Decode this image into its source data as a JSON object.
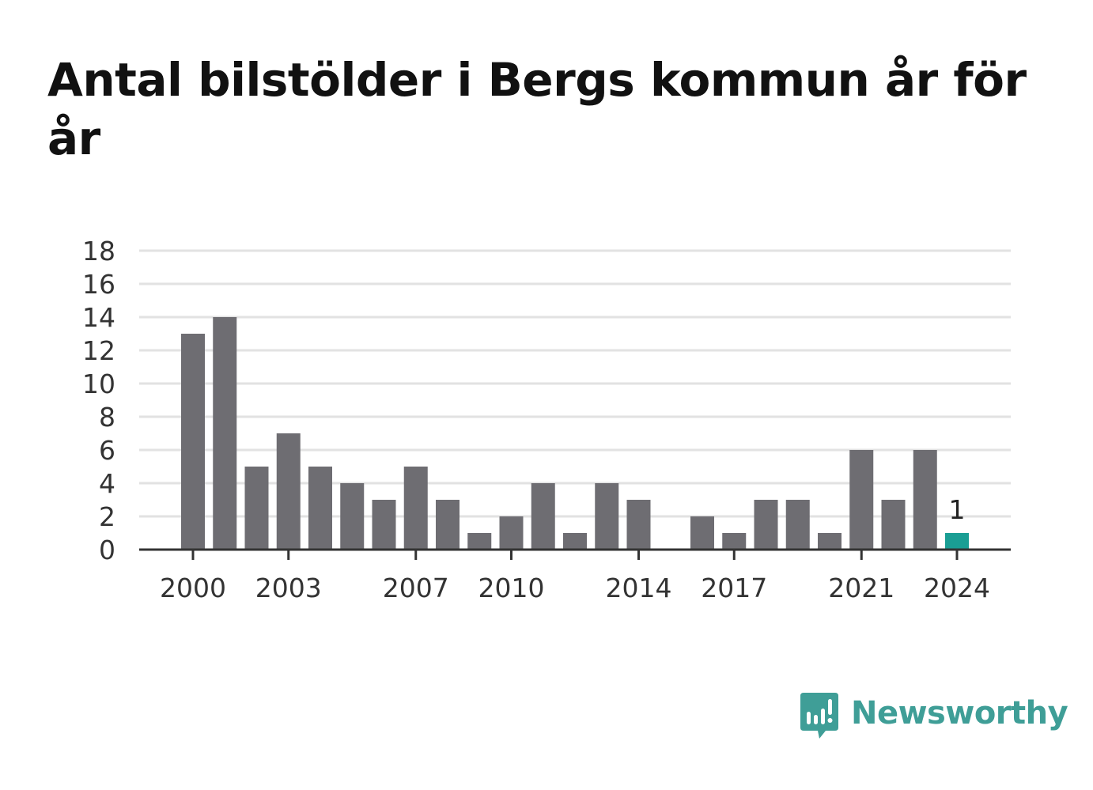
{
  "title": "Antal bilstölder i Bergs kommun år för år",
  "brand": {
    "name": "Newsworthy",
    "icon": "newsworthy-logo-icon",
    "color": "#3f9e97"
  },
  "chart_data": {
    "type": "bar",
    "title": "Antal bilstölder i Bergs kommun år för år",
    "xlabel": "",
    "ylabel": "",
    "categories": [
      "2000",
      "2001",
      "2002",
      "2003",
      "2004",
      "2005",
      "2006",
      "2007",
      "2008",
      "2009",
      "2010",
      "2011",
      "2012",
      "2013",
      "2014",
      "2015",
      "2016",
      "2017",
      "2018",
      "2019",
      "2020",
      "2021",
      "2022",
      "2023",
      "2024"
    ],
    "values": [
      13,
      14,
      5,
      7,
      5,
      4,
      3,
      5,
      3,
      1,
      2,
      4,
      1,
      4,
      3,
      0,
      2,
      1,
      3,
      3,
      1,
      6,
      3,
      6,
      1
    ],
    "ylim": [
      0,
      18
    ],
    "yticks": [
      0,
      2,
      4,
      6,
      8,
      10,
      12,
      14,
      16,
      18
    ],
    "xtick_labels": [
      "2000",
      "2003",
      "2007",
      "2010",
      "2014",
      "2017",
      "2021",
      "2024"
    ],
    "highlight": {
      "category": "2024",
      "label": "1"
    },
    "colors": {
      "bar": "#6e6d72",
      "highlight": "#1a9e94",
      "grid": "#e2e2e2",
      "axis": "#333333",
      "text": "#333333"
    },
    "grid": true,
    "legend": "none"
  }
}
